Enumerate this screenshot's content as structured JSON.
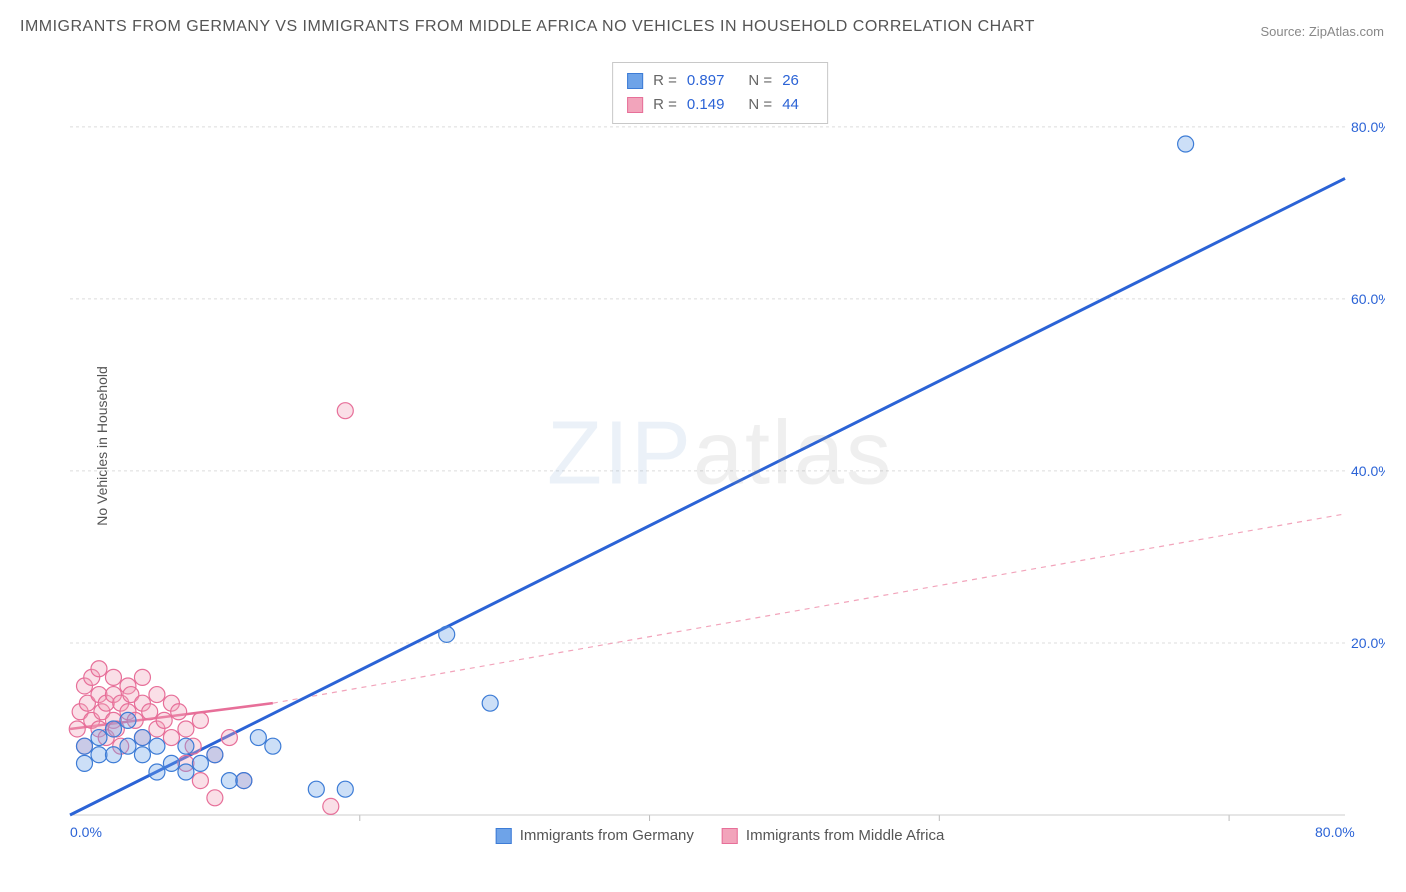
{
  "title": "IMMIGRANTS FROM GERMANY VS IMMIGRANTS FROM MIDDLE AFRICA NO VEHICLES IN HOUSEHOLD CORRELATION CHART",
  "source": "Source: ZipAtlas.com",
  "ylabel": "No Vehicles in Household",
  "watermark_zip": "ZIP",
  "watermark_atlas": "atlas",
  "chart": {
    "type": "scatter",
    "xlim": [
      0,
      88
    ],
    "ylim": [
      0,
      88
    ],
    "grid_color": "#dcdcdc",
    "background": "#ffffff",
    "grid_y": [
      20,
      40,
      60,
      80
    ],
    "grid_x": [
      20,
      40,
      60,
      80
    ],
    "ytick_labels": [
      "20.0%",
      "40.0%",
      "60.0%",
      "80.0%"
    ],
    "x_origin_label": "0.0%",
    "x_max_label": "80.0%",
    "marker_radius": 8,
    "marker_fill_opacity": 0.35,
    "marker_stroke_width": 1.2
  },
  "series": [
    {
      "name": "Immigrants from Germany",
      "color": "#6ea3e8",
      "stroke": "#3d7cd6",
      "stats": {
        "R": "0.897",
        "N": "26"
      },
      "trend": {
        "x1": 0,
        "y1": 0,
        "x2": 88,
        "y2": 74,
        "width": 3,
        "color": "#2b63d6",
        "dash": "none"
      },
      "points": [
        [
          1,
          6
        ],
        [
          1,
          8
        ],
        [
          2,
          7
        ],
        [
          2,
          9
        ],
        [
          3,
          7
        ],
        [
          3,
          10
        ],
        [
          4,
          8
        ],
        [
          4,
          11
        ],
        [
          5,
          9
        ],
        [
          5,
          7
        ],
        [
          6,
          8
        ],
        [
          6,
          5
        ],
        [
          7,
          6
        ],
        [
          8,
          5
        ],
        [
          8,
          8
        ],
        [
          9,
          6
        ],
        [
          10,
          7
        ],
        [
          11,
          4
        ],
        [
          12,
          4
        ],
        [
          13,
          9
        ],
        [
          14,
          8
        ],
        [
          17,
          3
        ],
        [
          19,
          3
        ],
        [
          26,
          21
        ],
        [
          29,
          13
        ],
        [
          77,
          78
        ]
      ]
    },
    {
      "name": "Immigrants from Middle Africa",
      "color": "#f2a4bb",
      "stroke": "#e76f99",
      "stats": {
        "R": "0.149",
        "N": "44"
      },
      "trend_solid": {
        "x1": 0,
        "y1": 10,
        "x2": 14,
        "y2": 13,
        "width": 2.5,
        "color": "#e76f99"
      },
      "trend_dash": {
        "x1": 14,
        "y1": 13,
        "x2": 88,
        "y2": 35,
        "width": 1.2,
        "color": "#f2a4bb",
        "dash": "5,5"
      },
      "points": [
        [
          0.5,
          10
        ],
        [
          0.7,
          12
        ],
        [
          1,
          15
        ],
        [
          1,
          8
        ],
        [
          1.2,
          13
        ],
        [
          1.5,
          16
        ],
        [
          1.5,
          11
        ],
        [
          2,
          17
        ],
        [
          2,
          14
        ],
        [
          2,
          10
        ],
        [
          2.2,
          12
        ],
        [
          2.5,
          13
        ],
        [
          2.5,
          9
        ],
        [
          3,
          14
        ],
        [
          3,
          16
        ],
        [
          3,
          11
        ],
        [
          3.2,
          10
        ],
        [
          3.5,
          13
        ],
        [
          3.5,
          8
        ],
        [
          4,
          15
        ],
        [
          4,
          12
        ],
        [
          4.2,
          14
        ],
        [
          4.5,
          11
        ],
        [
          5,
          13
        ],
        [
          5,
          16
        ],
        [
          5,
          9
        ],
        [
          5.5,
          12
        ],
        [
          6,
          14
        ],
        [
          6,
          10
        ],
        [
          6.5,
          11
        ],
        [
          7,
          13
        ],
        [
          7,
          9
        ],
        [
          7.5,
          12
        ],
        [
          8,
          10
        ],
        [
          8,
          6
        ],
        [
          8.5,
          8
        ],
        [
          9,
          11
        ],
        [
          9,
          4
        ],
        [
          10,
          7
        ],
        [
          10,
          2
        ],
        [
          11,
          9
        ],
        [
          12,
          4
        ],
        [
          18,
          1
        ],
        [
          19,
          47
        ]
      ]
    }
  ],
  "stats_labels": {
    "R": "R =",
    "N": "N ="
  },
  "legend": {
    "s1": "Immigrants from Germany",
    "s2": "Immigrants from Middle Africa"
  }
}
